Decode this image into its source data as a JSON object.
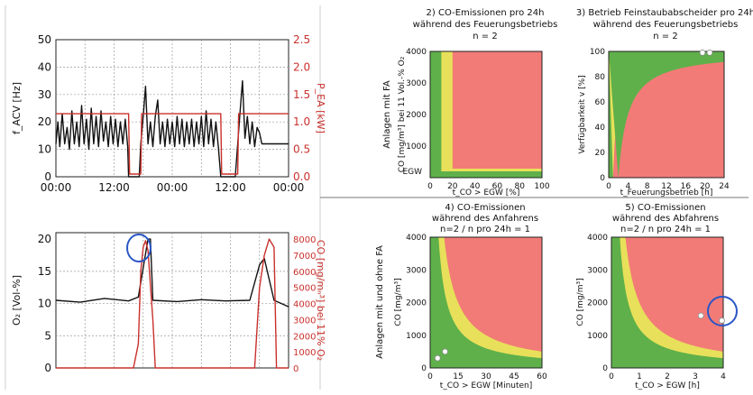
{
  "chart_data": [
    {
      "type": "line",
      "x_ticks": [
        "00:00",
        "12:00",
        "00:00",
        "12:00",
        "00:00"
      ],
      "yleft_label": "f_ACV [Hz]",
      "yleft_range": [
        0,
        50
      ],
      "yleft_ticks": [
        "0",
        "10",
        "20",
        "30",
        "40",
        "50"
      ],
      "yright_label": "P_EA [kW]",
      "yright_range": [
        0,
        2.5
      ],
      "yright_ticks": [
        "0.0",
        "0.5",
        "1.0",
        "1.5",
        "2.0",
        "2.5"
      ],
      "grid": true,
      "series": [
        {
          "axis": "left",
          "color": "#111111",
          "x": [
            0,
            0.4,
            0.8,
            1.3,
            1.8,
            2.3,
            2.8,
            3.3,
            3.8,
            4.3,
            4.8,
            5.3,
            5.8,
            6.3,
            6.8,
            7.3,
            7.8,
            8.3,
            8.8,
            9.3,
            9.8,
            10.3,
            10.8,
            11.3,
            11.8,
            12.3,
            12.8,
            13.3,
            13.8,
            14.3,
            14.8,
            15,
            17.2,
            17.5,
            18,
            18.5,
            19,
            19.5,
            20,
            20.5,
            21,
            21.5,
            22,
            22.5,
            23,
            23.5,
            24,
            24.5,
            25,
            25.5,
            26,
            26.5,
            27,
            27.5,
            28,
            28.5,
            29,
            29.5,
            30,
            30.5,
            31,
            31.5,
            32,
            32.5,
            33,
            33.5,
            34,
            34.5,
            35,
            35.5,
            36,
            36.5,
            37,
            37.5,
            38,
            38.5,
            39,
            39.5,
            40,
            40.5,
            41,
            41.5,
            42,
            42.5,
            43,
            43.5,
            44,
            44.5,
            45,
            45.5,
            46,
            46.5,
            47,
            47.5,
            48
          ],
          "y": [
            12,
            20,
            11,
            23,
            12,
            18,
            10,
            24,
            12,
            20,
            11,
            26,
            12,
            21,
            10,
            25,
            12,
            22,
            11,
            24,
            13,
            20,
            11,
            22,
            12,
            21,
            11,
            20,
            12,
            21,
            11,
            0,
            0,
            12,
            22,
            33,
            12,
            20,
            11,
            22,
            28,
            12,
            20,
            11,
            21,
            12,
            20,
            11,
            22,
            12,
            21,
            11,
            20,
            12,
            21,
            11,
            20,
            12,
            22,
            11,
            24,
            12,
            21,
            11,
            20,
            11,
            0,
            0,
            0,
            0,
            0,
            0,
            0,
            12,
            24,
            35,
            14,
            22,
            12,
            20,
            11,
            18,
            16,
            12,
            12,
            12,
            12,
            12,
            12,
            12,
            12,
            12,
            12,
            12,
            12
          ]
        },
        {
          "axis": "right",
          "color": "#c9302c",
          "x": [
            0,
            15,
            15.2,
            17.5,
            17.7,
            34,
            34.2,
            37.5,
            37.7,
            48
          ],
          "y": [
            1.15,
            1.15,
            0.05,
            0.05,
            1.15,
            1.15,
            0.05,
            0.05,
            1.15,
            1.15
          ]
        }
      ]
    },
    {
      "type": "line",
      "x_ticks": [],
      "yleft_label": "O₂ [Vol-%]",
      "yleft_range": [
        0,
        21
      ],
      "yleft_ticks": [
        "0",
        "5",
        "10",
        "15",
        "20"
      ],
      "yright_label": "CO [mg/mₙ³] bei 11% O₂",
      "yright_range": [
        0,
        8400
      ],
      "yright_ticks": [
        "0",
        "1000",
        "2000",
        "3000",
        "4000",
        "5000",
        "6000",
        "7000",
        "8000"
      ],
      "grid": true,
      "series": [
        {
          "axis": "left",
          "color": "#111111",
          "x": [
            0,
            5,
            10,
            15,
            17,
            19,
            19.5,
            20,
            25,
            30,
            35,
            40,
            42,
            43,
            45,
            48
          ],
          "y": [
            10.5,
            10.2,
            10.8,
            10.4,
            11,
            20,
            20,
            10.5,
            10.3,
            10.6,
            10.4,
            10.5,
            16,
            17,
            10.5,
            9.5
          ]
        },
        {
          "axis": "right",
          "color": "#c9302c",
          "x": [
            0,
            15,
            16,
            17,
            17.5,
            18,
            18.5,
            19,
            20,
            20.5,
            22,
            40,
            41,
            42,
            43,
            44,
            45,
            45.5,
            48
          ],
          "y": [
            0,
            0,
            0,
            1500,
            6000,
            7500,
            7900,
            7300,
            3000,
            0,
            0,
            0,
            0,
            5000,
            7000,
            8000,
            7500,
            0,
            0
          ]
        }
      ]
    },
    {
      "type": "heatmap",
      "title": "2) CO-Emissionen pro 24h während des Feuerungsbetriebs n = 2",
      "xlabel": "t_CO > EGW [%]",
      "ylabel": "CO [mg/m³] bei 11 Vol.-% O₂",
      "group_label": "Anlagen mit FA",
      "xlim": [
        0,
        100
      ],
      "ylim": [
        0,
        4000
      ],
      "x_ticks": [
        "0",
        "20",
        "40",
        "60",
        "80",
        "100"
      ],
      "y_ticks": [
        "1000",
        "2000",
        "3000",
        "4000"
      ],
      "annotation": "EGW",
      "regions": {
        "green_until_x": 10,
        "yellow_until_x": 20,
        "low_band_top_y": 200
      }
    },
    {
      "type": "heatmap",
      "title": "3) Betrieb Feinstaubabscheider pro 24h während des Feuerungsbetriebs n = 2",
      "xlabel": "t_Feuerungsbetrieb [h]",
      "ylabel": "Verfügbarkeit v [%]",
      "xlim": [
        0,
        24
      ],
      "ylim": [
        0,
        100
      ],
      "x_ticks": [
        "0",
        "4",
        "8",
        "12",
        "16",
        "20",
        "24"
      ],
      "y_ticks": [
        "0",
        "20",
        "40",
        "60",
        "80",
        "100"
      ],
      "points": [
        {
          "x": 19.5,
          "y": 99
        },
        {
          "x": 21,
          "y": 99
        }
      ]
    },
    {
      "type": "heatmap",
      "title": "4) CO-Emissionen während des Anfahrens n=2 / n pro 24h = 1",
      "xlabel": "t_CO > EGW [Minuten]",
      "ylabel": "CO [mg/m³]",
      "group_label": "Anlagen mit und ohne FA",
      "xlim": [
        0,
        60
      ],
      "ylim": [
        0,
        4000
      ],
      "x_ticks": [
        "0",
        "15",
        "30",
        "45",
        "60"
      ],
      "y_ticks": [
        "0",
        "1000",
        "2000",
        "3000",
        "4000"
      ],
      "points": [
        {
          "x": 4,
          "y": 300
        },
        {
          "x": 8,
          "y": 500
        }
      ]
    },
    {
      "type": "heatmap",
      "title": "5) CO-Emissionen während des Abfahrens n=2 / n pro 24h = 1",
      "xlabel": "t_CO > EGW [h]",
      "ylabel": "CO [mg/m³]",
      "xlim": [
        0,
        4
      ],
      "ylim": [
        0,
        4000
      ],
      "x_ticks": [
        "0",
        "1",
        "2",
        "3",
        "4"
      ],
      "y_ticks": [
        "0",
        "1000",
        "2000",
        "3000",
        "4000"
      ],
      "points": [
        {
          "x": 3.2,
          "y": 1600
        },
        {
          "x": 3.95,
          "y": 1450
        }
      ]
    }
  ],
  "colors": {
    "green": "#5fb04a",
    "yellow": "#e8e05a",
    "red": "#f27b77",
    "line_red": "#c9302c",
    "highlight": "#2a56c6"
  }
}
